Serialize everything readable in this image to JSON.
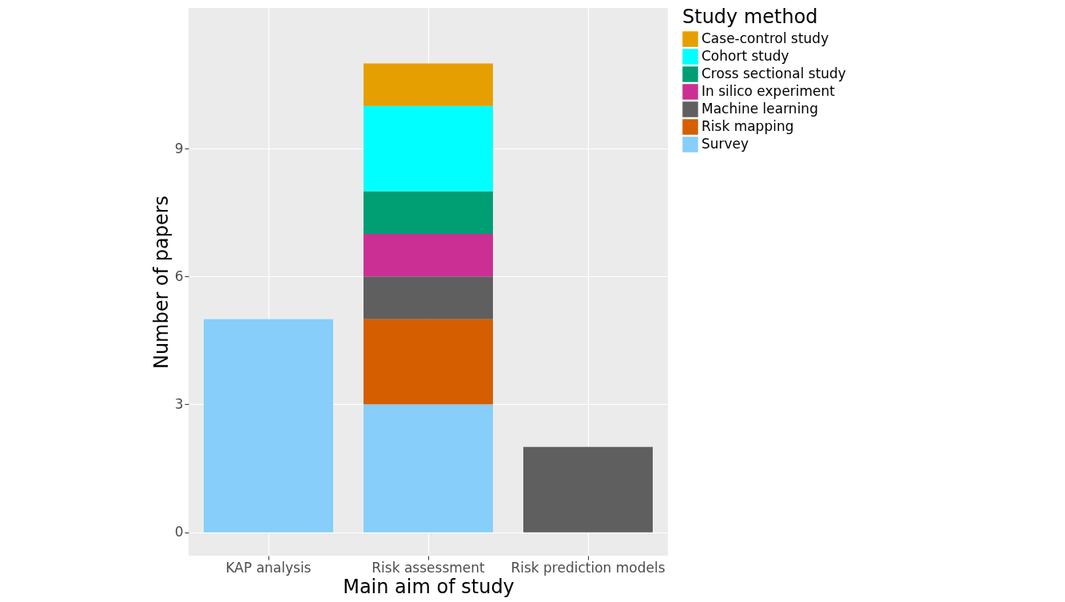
{
  "chart_data": {
    "type": "bar",
    "stacked": true,
    "xlabel": "Main aim of study",
    "ylabel": "Number of papers",
    "legend_title": "Study method",
    "categories": [
      "KAP analysis",
      "Risk assessment",
      "Risk prediction models"
    ],
    "series": [
      {
        "name": "Survey",
        "color": "#87cefa",
        "values": [
          5,
          3,
          null
        ]
      },
      {
        "name": "Risk mapping",
        "color": "#d55e00",
        "values": [
          null,
          2,
          null
        ]
      },
      {
        "name": "Machine learning",
        "color": "#5f5f5f",
        "values": [
          null,
          1,
          2
        ]
      },
      {
        "name": "In silico experiment",
        "color": "#cc2f93",
        "values": [
          null,
          1,
          null
        ]
      },
      {
        "name": "Cross sectional study",
        "color": "#009e73",
        "values": [
          null,
          1,
          null
        ]
      },
      {
        "name": "Cohort study",
        "color": "#00ffff",
        "values": [
          null,
          2,
          null
        ]
      },
      {
        "name": "Case-control study",
        "color": "#e69f00",
        "values": [
          null,
          1,
          null
        ]
      }
    ],
    "ylim": [
      -0.55,
      12.3
    ],
    "yticks": [
      0,
      3,
      6,
      9
    ],
    "grid": true,
    "legend": "right"
  }
}
